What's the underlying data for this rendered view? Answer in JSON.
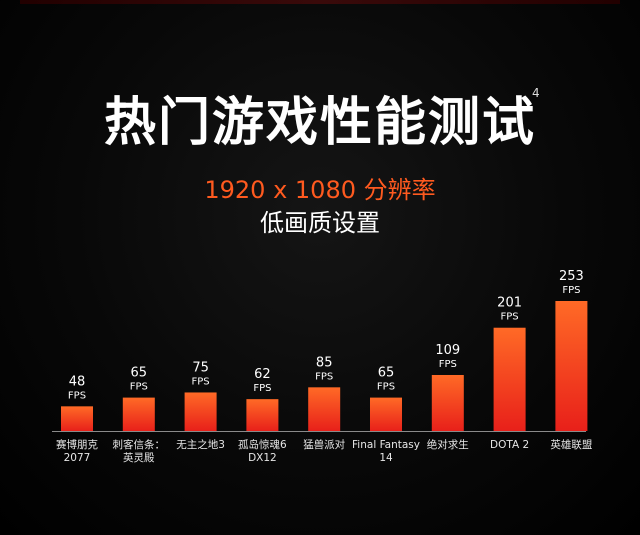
{
  "header": {
    "title": "热门游戏性能测试",
    "footnote": "4",
    "resolution": "1920 x 1080 分辨率",
    "quality": "低画质设置"
  },
  "colors": {
    "accent": "#ff5a1f",
    "bar_top": "#ff6a26",
    "bar_bottom": "#e8201a",
    "axis": "#8a8a8a"
  },
  "chart_data": {
    "type": "bar",
    "title": "热门游戏性能测试",
    "subtitle": "1920 x 1080 分辨率 低画质设置",
    "unit": "FPS",
    "categories": [
      [
        "赛博朋克",
        "2077"
      ],
      [
        "刺客信条：",
        "英灵殿"
      ],
      [
        "无主之地3"
      ],
      [
        "孤岛惊魂6",
        "DX12"
      ],
      [
        "猛兽派对"
      ],
      [
        "Final Fantasy",
        "14"
      ],
      [
        "绝对求生"
      ],
      [
        "DOTA 2"
      ],
      [
        "英雄联盟"
      ]
    ],
    "values": [
      48,
      65,
      75,
      62,
      85,
      65,
      109,
      201,
      253
    ],
    "ylim": [
      0,
      253
    ],
    "grid": false,
    "legend": "none"
  }
}
